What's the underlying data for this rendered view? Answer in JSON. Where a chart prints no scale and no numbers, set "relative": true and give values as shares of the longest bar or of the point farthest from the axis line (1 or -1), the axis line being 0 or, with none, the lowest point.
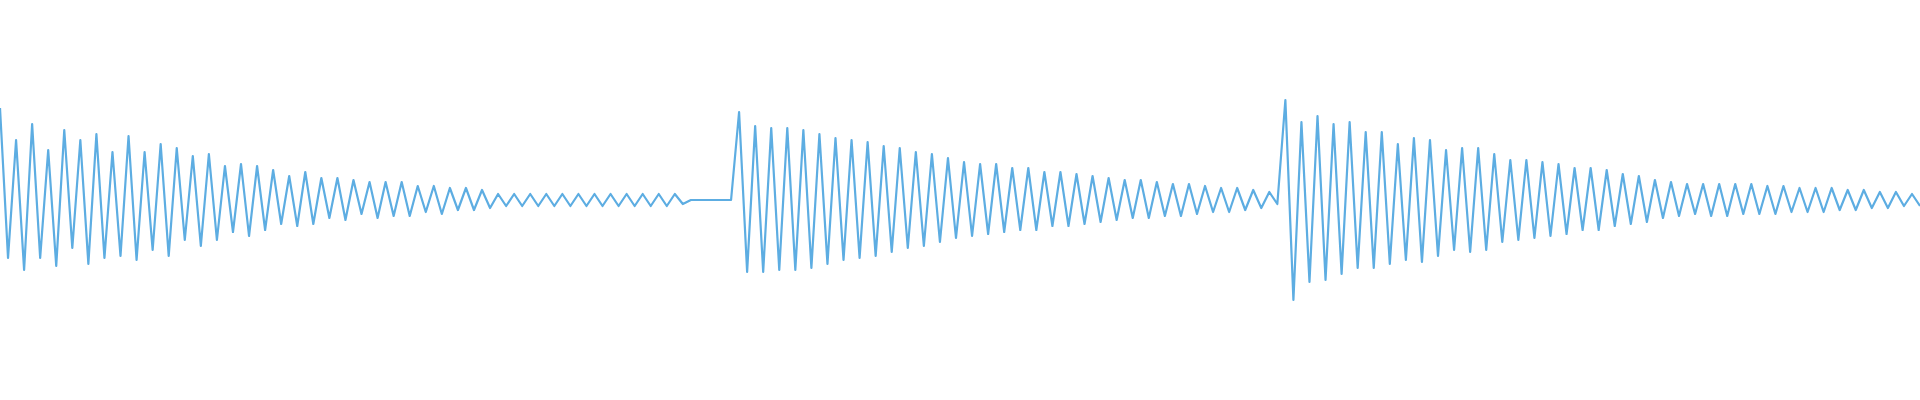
{
  "chart_data": {
    "type": "line",
    "relative": true,
    "categories": [
      null,
      null,
      null,
      null,
      null,
      null,
      null,
      null,
      null,
      null,
      null,
      null,
      null,
      null,
      null,
      null,
      null,
      null,
      null,
      null,
      null,
      null,
      null,
      null,
      null,
      null,
      null,
      null,
      null,
      null,
      null,
      null,
      null,
      null,
      null,
      null,
      null,
      null,
      null,
      null,
      null,
      null,
      null,
      null,
      null,
      null,
      null,
      null,
      null,
      null,
      null,
      null,
      null,
      null,
      null,
      null,
      null,
      null,
      null,
      null,
      null,
      null,
      null,
      null,
      null,
      null,
      null,
      null,
      null,
      null,
      null,
      null,
      null,
      null,
      null,
      null,
      null,
      null,
      null,
      null,
      null,
      null,
      null,
      null,
      null,
      null,
      null,
      null,
      null,
      null,
      null,
      null,
      null,
      null,
      null,
      null,
      null,
      null,
      null,
      null,
      null,
      null,
      null,
      null,
      null,
      null,
      null,
      null,
      null,
      null,
      null,
      null,
      null,
      null,
      null,
      null,
      null,
      null,
      null,
      null,
      null,
      null,
      null,
      null,
      null,
      null,
      null,
      null,
      null,
      null,
      null,
      null,
      null,
      null,
      null,
      null,
      null,
      null,
      null,
      null,
      null,
      null,
      null,
      null,
      null,
      null,
      null,
      null,
      null,
      null,
      null,
      null,
      null,
      null,
      null,
      null,
      null,
      null,
      null,
      null,
      null,
      null,
      null,
      null,
      null,
      null,
      null,
      null,
      null,
      null,
      null,
      null,
      null,
      null,
      null,
      null,
      null,
      null,
      null,
      null,
      null,
      null,
      null,
      null,
      null,
      null,
      null,
      null,
      null,
      null,
      null,
      null,
      null,
      null,
      null,
      null,
      null,
      null,
      null,
      null,
      null,
      null,
      null,
      null,
      null,
      null,
      null,
      null,
      null,
      null,
      null,
      null,
      null,
      null,
      null,
      null,
      null,
      null,
      null,
      null,
      null,
      null,
      null,
      null,
      null,
      null,
      null,
      null,
      null,
      null,
      null,
      null,
      null,
      null,
      null,
      null,
      null,
      null,
      null,
      null
    ],
    "series": [
      {
        "color": "#5dade2",
        "values": [
          0.96,
          0.21,
          0.8,
          0.15,
          0.88,
          0.21,
          0.75,
          0.17,
          0.85,
          0.26,
          0.8,
          0.18,
          0.83,
          0.21,
          0.74,
          0.22,
          0.82,
          0.2,
          0.74,
          0.25,
          0.78,
          0.22,
          0.76,
          0.3,
          0.72,
          0.27,
          0.73,
          0.3,
          0.67,
          0.34,
          0.68,
          0.32,
          0.67,
          0.35,
          0.65,
          0.38,
          0.62,
          0.37,
          0.64,
          0.38,
          0.61,
          0.41,
          0.61,
          0.4,
          0.6,
          0.43,
          0.59,
          0.41,
          0.59,
          0.42,
          0.59,
          0.42,
          0.57,
          0.44,
          0.57,
          0.43,
          0.56,
          0.45,
          0.56,
          0.45,
          0.55,
          0.46,
          0.53,
          0.47,
          0.53,
          0.47,
          0.53,
          0.47,
          0.53,
          0.47,
          0.53,
          0.47,
          0.53,
          0.47,
          0.53,
          0.47,
          0.53,
          0.47,
          0.53,
          0.47,
          0.53,
          0.47,
          0.53,
          0.47,
          0.53,
          0.48,
          0.5,
          0.5,
          0.5,
          0.5,
          0.5,
          0.5,
          0.94,
          0.14,
          0.87,
          0.14,
          0.86,
          0.15,
          0.86,
          0.15,
          0.85,
          0.16,
          0.83,
          0.18,
          0.81,
          0.2,
          0.8,
          0.21,
          0.79,
          0.22,
          0.77,
          0.24,
          0.76,
          0.26,
          0.74,
          0.27,
          0.73,
          0.29,
          0.71,
          0.31,
          0.69,
          0.32,
          0.68,
          0.33,
          0.68,
          0.34,
          0.66,
          0.35,
          0.66,
          0.35,
          0.64,
          0.37,
          0.64,
          0.37,
          0.63,
          0.38,
          0.62,
          0.39,
          0.61,
          0.4,
          0.6,
          0.41,
          0.6,
          0.41,
          0.59,
          0.42,
          0.58,
          0.42,
          0.58,
          0.43,
          0.57,
          0.44,
          0.56,
          0.44,
          0.56,
          0.45,
          0.55,
          0.46,
          0.54,
          0.48,
          1.0,
          0.0,
          0.89,
          0.09,
          0.92,
          0.1,
          0.88,
          0.13,
          0.89,
          0.16,
          0.84,
          0.16,
          0.84,
          0.18,
          0.78,
          0.2,
          0.81,
          0.19,
          0.8,
          0.22,
          0.75,
          0.25,
          0.76,
          0.24,
          0.76,
          0.25,
          0.73,
          0.29,
          0.7,
          0.3,
          0.7,
          0.31,
          0.69,
          0.32,
          0.68,
          0.33,
          0.66,
          0.35,
          0.66,
          0.35,
          0.65,
          0.37,
          0.63,
          0.38,
          0.62,
          0.39,
          0.6,
          0.41,
          0.59,
          0.42,
          0.58,
          0.43,
          0.58,
          0.42,
          0.58,
          0.42,
          0.58,
          0.43,
          0.58,
          0.43,
          0.57,
          0.43,
          0.57,
          0.44,
          0.56,
          0.44,
          0.56,
          0.44,
          0.56,
          0.45,
          0.55,
          0.45,
          0.55,
          0.46,
          0.54,
          0.46,
          0.54,
          0.47,
          0.53,
          0.47
        ]
      }
    ]
  }
}
